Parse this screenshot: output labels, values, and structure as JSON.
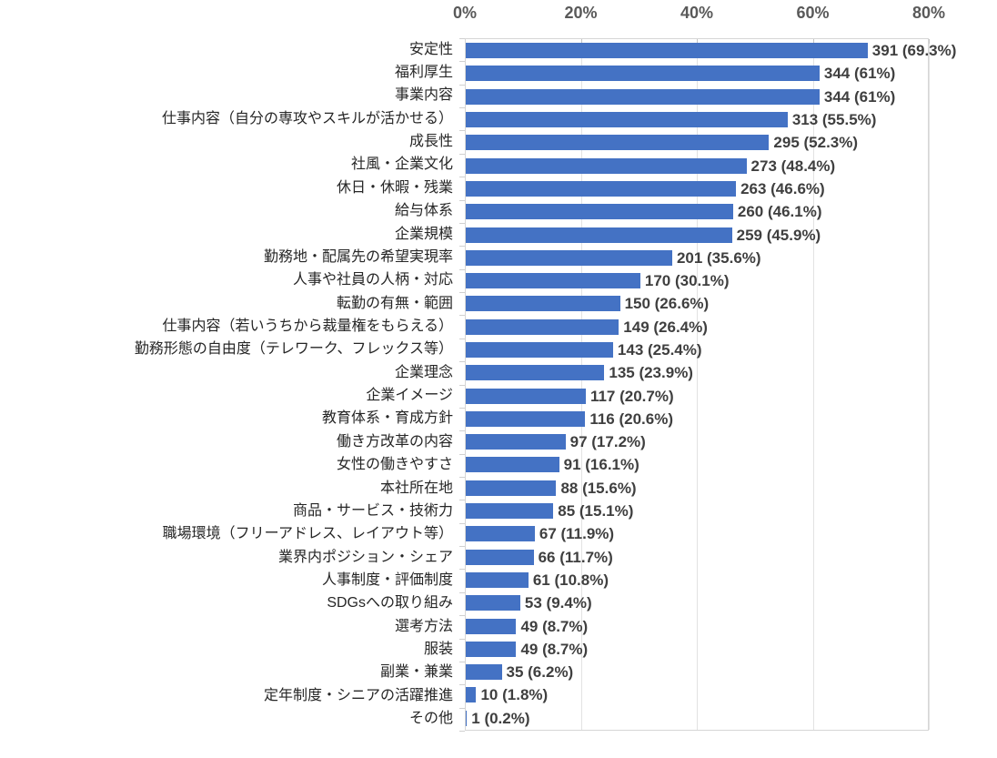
{
  "chart_data": {
    "type": "bar",
    "orientation": "horizontal",
    "title": "",
    "xlabel": "",
    "ylabel": "",
    "legend": null,
    "grid": true,
    "bar_color": "#4472C4",
    "x_axis": {
      "position": "top",
      "ticks": [
        "0%",
        "20%",
        "40%",
        "60%",
        "80%"
      ],
      "min": 0,
      "max": 80
    },
    "categories": [
      "安定性",
      "福利厚生",
      "事業内容",
      "仕事内容（自分の専攻やスキルが活かせる）",
      "成長性",
      "社風・企業文化",
      "休日・休暇・残業",
      "給与体系",
      "企業規模",
      "勤務地・配属先の希望実現率",
      "人事や社員の人柄・対応",
      "転勤の有無・範囲",
      "仕事内容（若いうちから裁量権をもらえる）",
      "勤務形態の自由度（テレワーク、フレックス等）",
      "企業理念",
      "企業イメージ",
      "教育体系・育成方針",
      "働き方改革の内容",
      "女性の働きやすさ",
      "本社所在地",
      "商品・サービス・技術力",
      "職場環境（フリーアドレス、レイアウト等）",
      "業界内ポジション・シェア",
      "人事制度・評価制度",
      "SDGsへの取り組み",
      "選考方法",
      "服装",
      "副業・兼業",
      "定年制度・シニアの活躍推進",
      "その他"
    ],
    "values": [
      391,
      344,
      344,
      313,
      295,
      273,
      263,
      260,
      259,
      201,
      170,
      150,
      149,
      143,
      135,
      117,
      116,
      97,
      91,
      88,
      85,
      67,
      66,
      61,
      53,
      49,
      49,
      35,
      10,
      1
    ],
    "percents": [
      69.3,
      61,
      61,
      55.5,
      52.3,
      48.4,
      46.6,
      46.1,
      45.9,
      35.6,
      30.1,
      26.6,
      26.4,
      25.4,
      23.9,
      20.7,
      20.6,
      17.2,
      16.1,
      15.6,
      15.1,
      11.9,
      11.7,
      10.8,
      9.4,
      8.7,
      8.7,
      6.2,
      1.8,
      0.2
    ],
    "data_labels": [
      "391 (69.3%)",
      "344 (61%)",
      "344 (61%)",
      "313 (55.5%)",
      "295 (52.3%)",
      "273 (48.4%)",
      "263 (46.6%)",
      "260 (46.1%)",
      "259 (45.9%)",
      "201 (35.6%)",
      "170 (30.1%)",
      "150 (26.6%)",
      "149 (26.4%)",
      "143 (25.4%)",
      "135 (23.9%)",
      "117 (20.7%)",
      "116 (20.6%)",
      "97 (17.2%)",
      "91 (16.1%)",
      "88 (15.6%)",
      "85 (15.1%)",
      "67 (11.9%)",
      "66 (11.7%)",
      "61 (10.8%)",
      "53 (9.4%)",
      "49 (8.7%)",
      "49 (8.7%)",
      "35 (6.2%)",
      "10 (1.8%)",
      "1 (0.2%)"
    ]
  }
}
